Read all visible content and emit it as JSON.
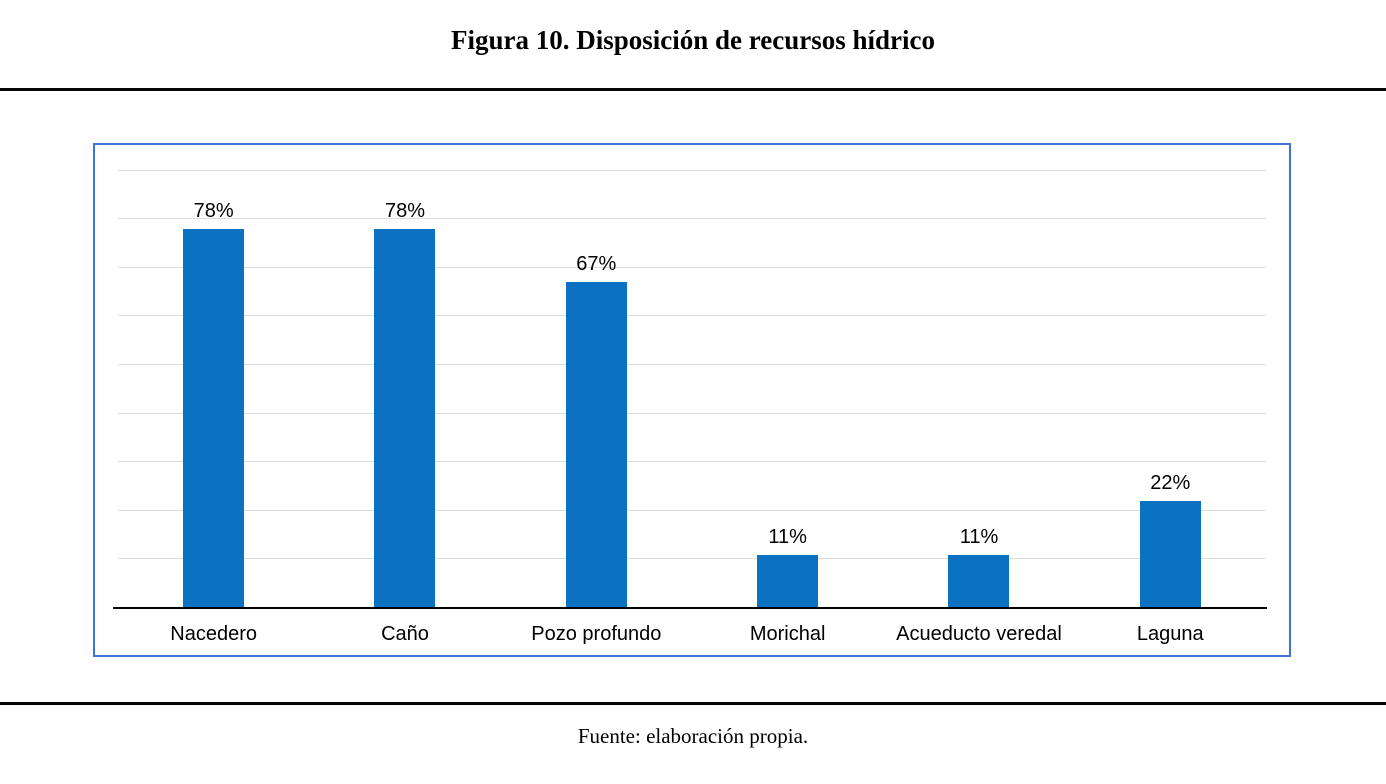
{
  "page": {
    "title": "Figura 10. Disposición de recursos hídrico",
    "source_note": "Fuente: elaboración propia."
  },
  "chart_data": {
    "type": "bar",
    "title": "Figura 10. Disposición de recursos hídrico",
    "categories": [
      "Nacedero",
      "Caño",
      "Pozo profundo",
      "Morichal",
      "Acueducto veredal",
      "Laguna"
    ],
    "values": [
      78,
      78,
      67,
      11,
      11,
      22
    ],
    "data_labels": [
      "78%",
      "78%",
      "67%",
      "11%",
      "11%",
      "22%"
    ],
    "unit": "%",
    "xlabel": "",
    "ylabel": "",
    "ylim": [
      0,
      90
    ],
    "gridline_step": 10,
    "grid": "horizontal",
    "legend": "none",
    "y_tick_labels_visible": false,
    "colors": {
      "bar": "#0b72c2",
      "frame_border": "#4272dc",
      "gridline": "#dcdcdc",
      "axis": "#000000",
      "text": "#000000"
    }
  }
}
